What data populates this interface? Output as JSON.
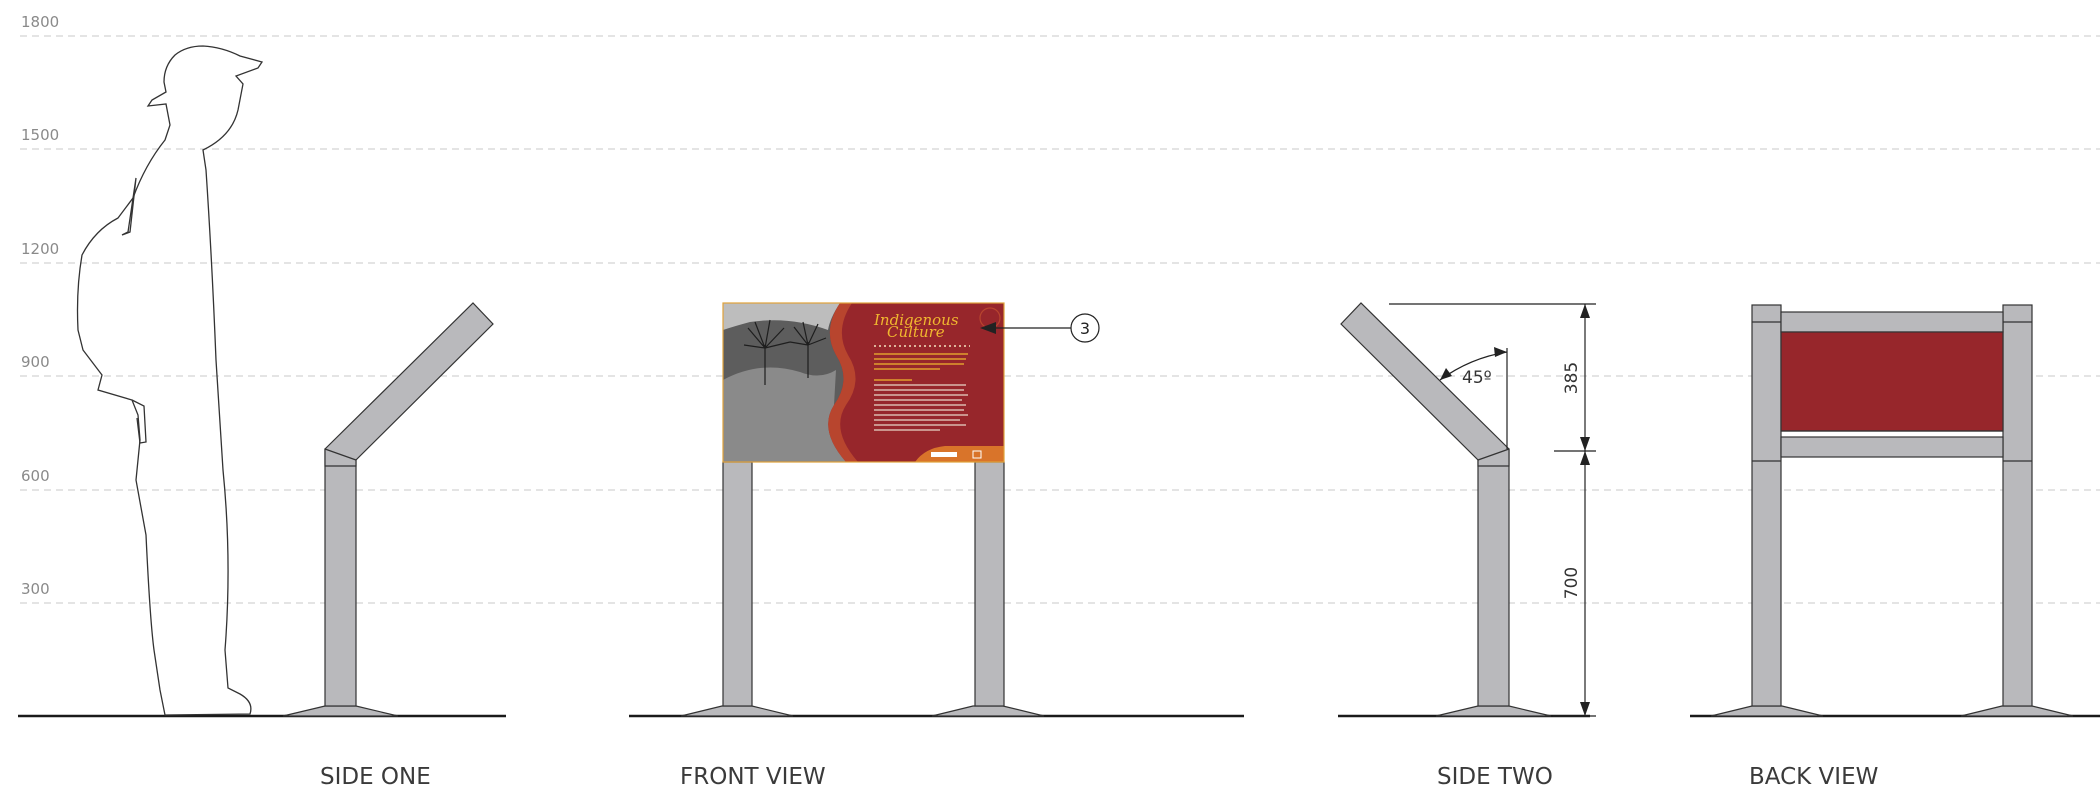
{
  "scale": {
    "unit": "mm",
    "levels": [
      {
        "value": 1800,
        "label": "1800"
      },
      {
        "value": 1500,
        "label": "1500"
      },
      {
        "value": 1200,
        "label": "1200"
      },
      {
        "value": 900,
        "label": "900"
      },
      {
        "value": 600,
        "label": "600"
      },
      {
        "value": 300,
        "label": "300"
      }
    ]
  },
  "views": {
    "side_one": "SIDE ONE",
    "front": "FRONT VIEW",
    "side_two": "SIDE TWO",
    "back": "BACK VIEW"
  },
  "dimensions": {
    "panel_height": "385",
    "post_height": "700",
    "angle": "45º"
  },
  "callout": {
    "number": "3"
  },
  "sign_panel": {
    "title_line1": "Indigenous",
    "title_line2": "Culture",
    "panel_color": "#97262b",
    "accent_color": "#f0b72f",
    "footer_color": "#d9742a"
  },
  "colors": {
    "post_fill": "#b9b9bc",
    "gridline": "#c8c8c8",
    "ground": "#1a1a1a"
  }
}
